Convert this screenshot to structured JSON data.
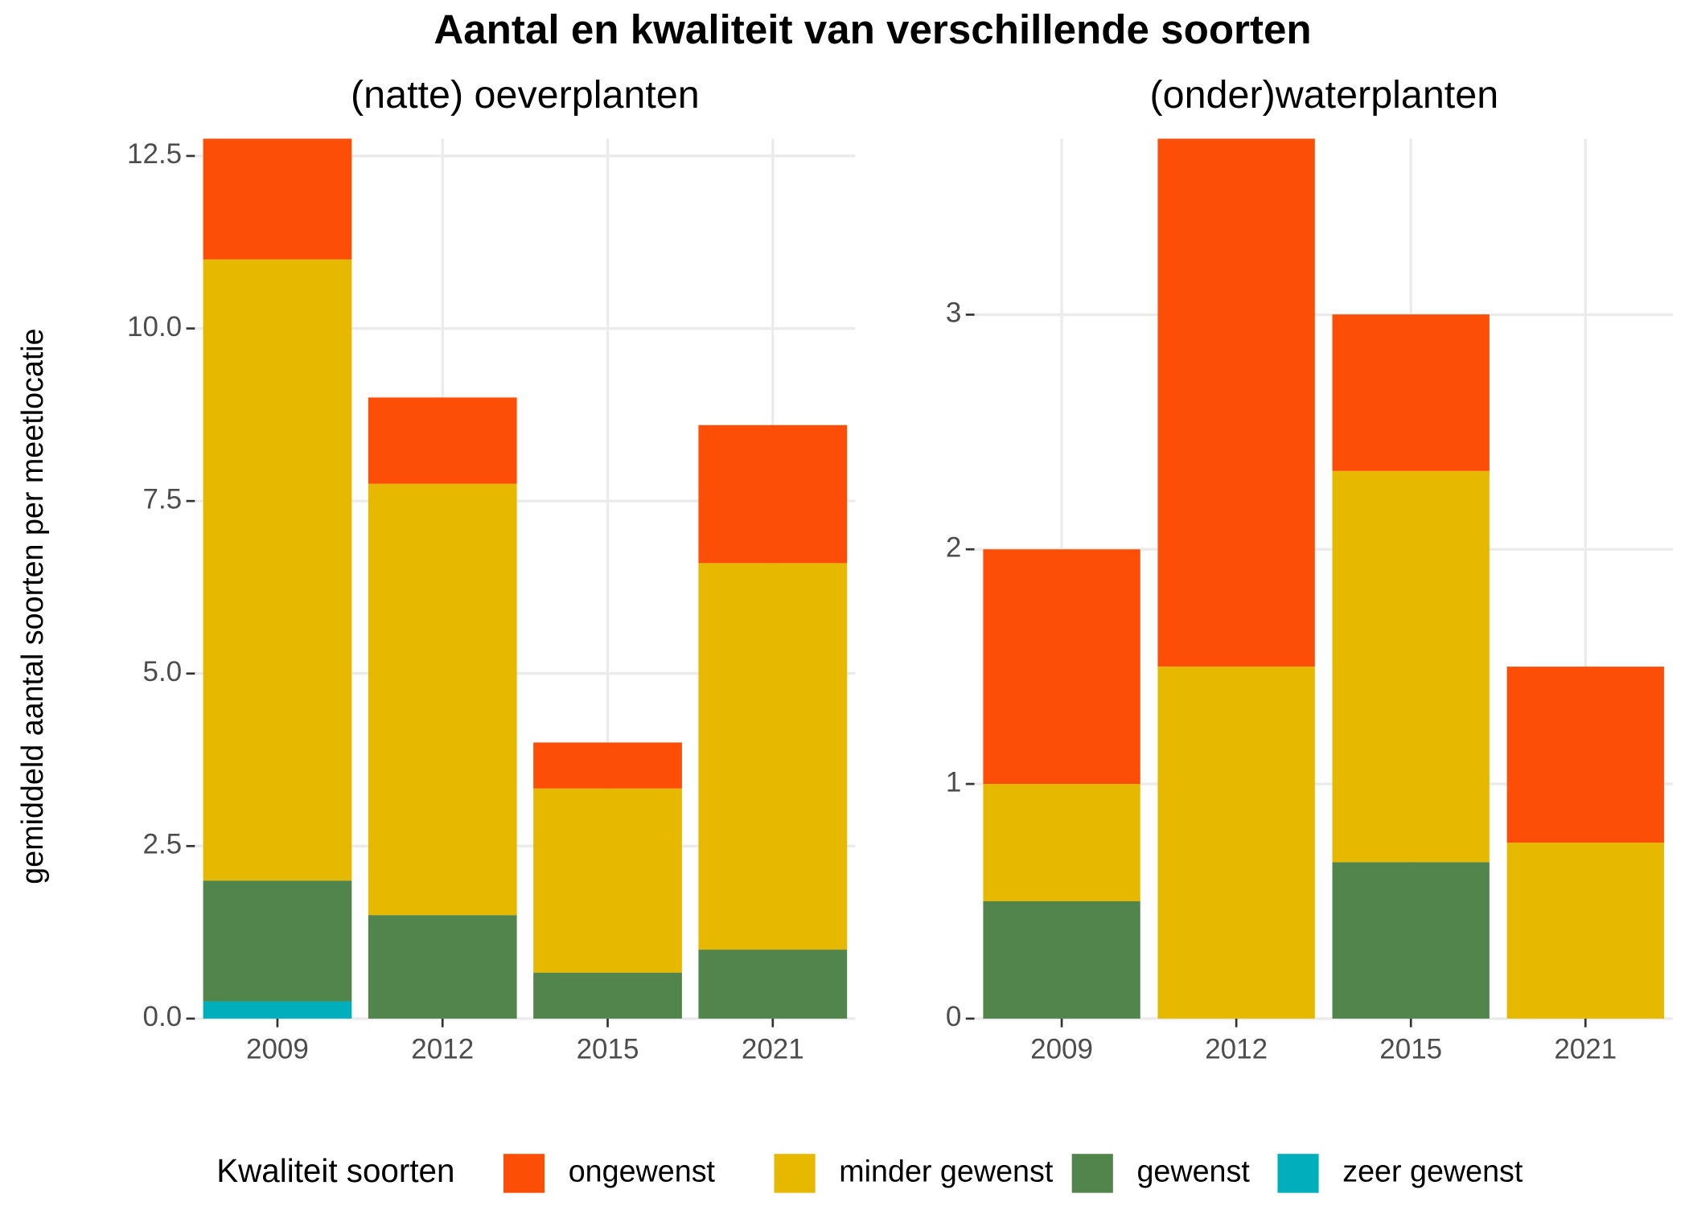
{
  "title": "Aantal en kwaliteit van verschillende soorten",
  "y_label": "gemiddeld aantal soorten per meetlocatie",
  "legend_title": "Kwaliteit soorten",
  "chart_data": [
    {
      "type": "bar",
      "stacked": true,
      "subtitle": "(natte) oeverplanten",
      "categories": [
        "2009",
        "2012",
        "2015",
        "2021"
      ],
      "series": [
        {
          "name": "ongewenst",
          "color": "#FC4E07",
          "values": [
            1.75,
            1.25,
            0.667,
            2.0
          ]
        },
        {
          "name": "minder gewenst",
          "color": "#E7B800",
          "values": [
            9,
            6.25,
            2.667,
            5.6
          ]
        },
        {
          "name": "gewenst",
          "color": "#52854C",
          "values": [
            1.75,
            1.5,
            0.667,
            1.0
          ]
        },
        {
          "name": "zeer gewenst",
          "color": "#00AFBB",
          "values": [
            0.25,
            0,
            0,
            0
          ]
        }
      ],
      "ylim": [
        0,
        12.75
      ],
      "yticks": [
        {
          "value": 0,
          "label": "0.0"
        },
        2.5,
        {
          "value": 5,
          "label": "5.0"
        },
        7.5,
        {
          "value": 10,
          "label": "10.0"
        },
        12.5
      ],
      "grid": true
    },
    {
      "type": "bar",
      "stacked": true,
      "subtitle": "(onder)waterplanten",
      "categories": [
        "2009",
        "2012",
        "2015",
        "2021"
      ],
      "series": [
        {
          "name": "ongewenst",
          "color": "#FC4E07",
          "values": [
            1.0,
            2.25,
            0.667,
            0.75
          ]
        },
        {
          "name": "minder gewenst",
          "color": "#E7B800",
          "values": [
            0.5,
            1.5,
            1.667,
            0.75
          ]
        },
        {
          "name": "gewenst",
          "color": "#52854C",
          "values": [
            0.5,
            0,
            0.667,
            0
          ]
        },
        {
          "name": "zeer gewenst",
          "color": "#00AFBB",
          "values": [
            0,
            0,
            0,
            0
          ]
        }
      ],
      "ylim": [
        0,
        3.75
      ],
      "yticks": [
        0,
        1,
        2,
        3
      ],
      "grid": true
    }
  ]
}
